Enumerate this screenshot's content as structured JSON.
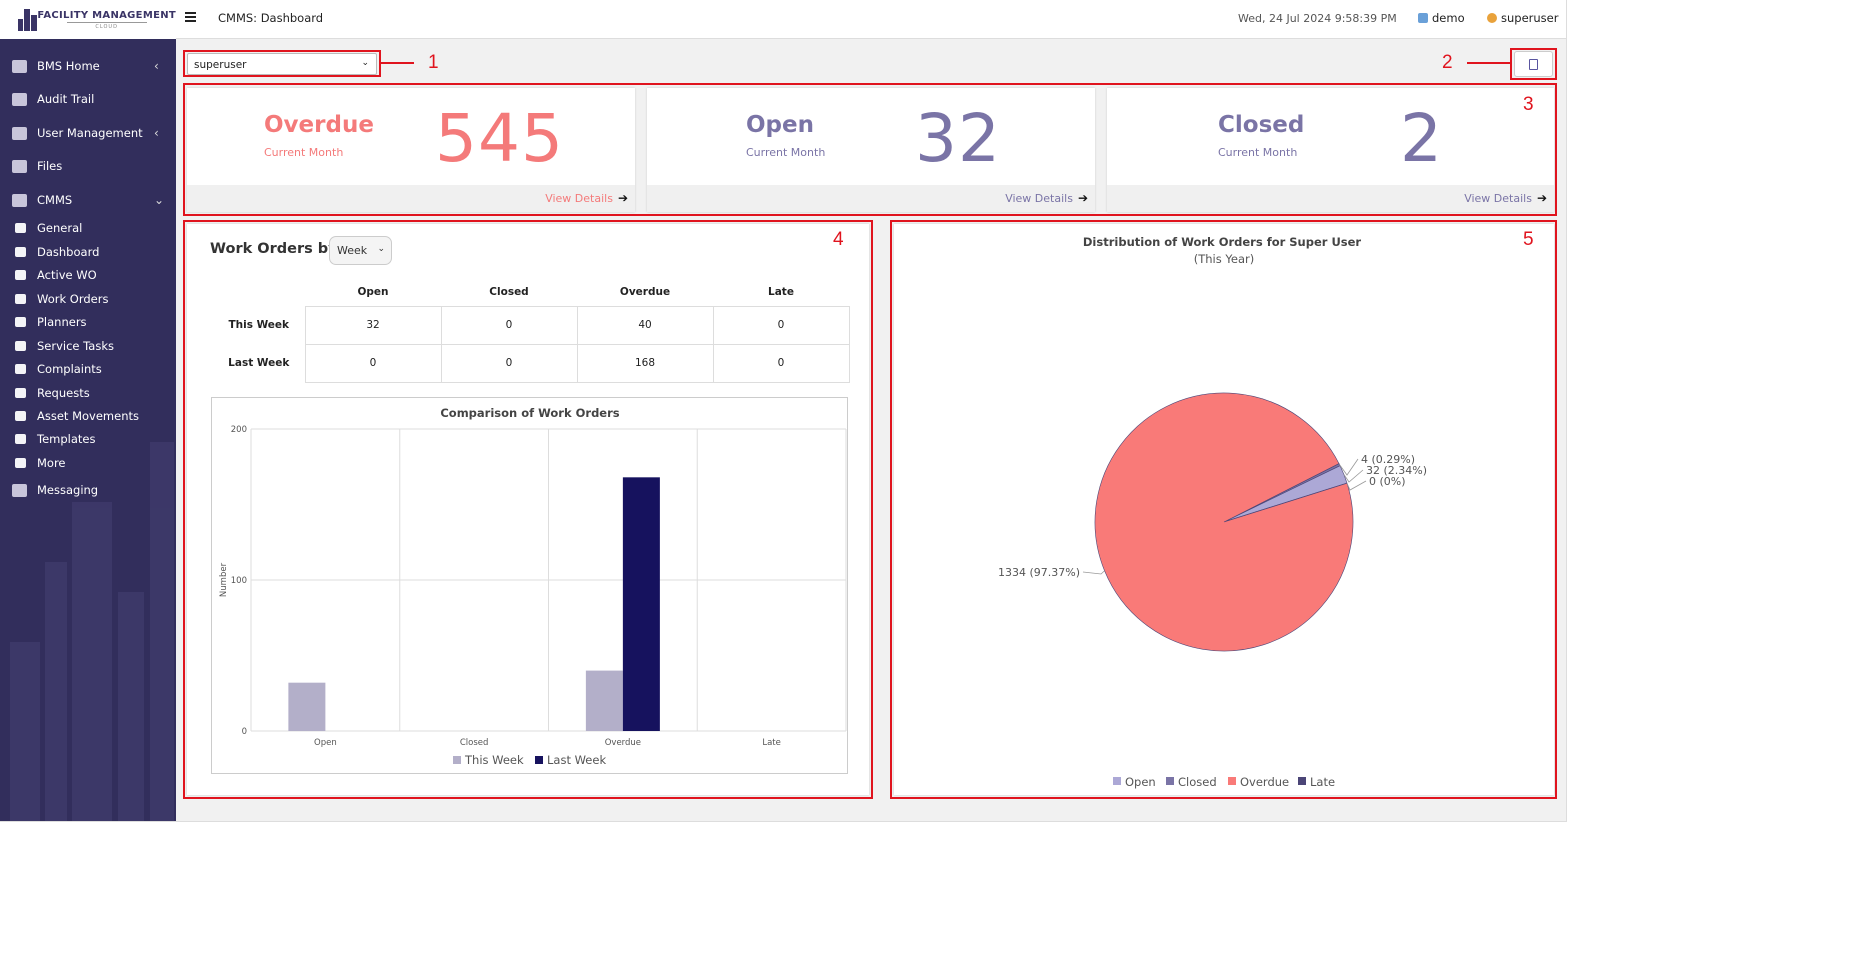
{
  "app": {
    "brand": "FACILITY MANAGEMENT",
    "brand_sub": "CLOUD",
    "page_title": "CMMS: Dashboard",
    "datetime": "Wed, 24 Jul 2024 9:58:39 PM",
    "site": "demo",
    "user": "superuser"
  },
  "sidebar": {
    "items": [
      {
        "label": "BMS Home",
        "icon": "building-icon",
        "chevron": "‹"
      },
      {
        "label": "Audit Trail",
        "icon": "clipboard-icon",
        "chevron": ""
      },
      {
        "label": "User Management",
        "icon": "users-icon",
        "chevron": "‹"
      },
      {
        "label": "Files",
        "icon": "files-icon",
        "chevron": ""
      },
      {
        "label": "CMMS",
        "icon": "cmms-icon",
        "chevron": "⌄"
      }
    ],
    "sub_items": [
      {
        "label": "General",
        "icon": "cogs-icon"
      },
      {
        "label": "Dashboard",
        "icon": "dashboard-icon"
      },
      {
        "label": "Active WO",
        "icon": "wrench-icon"
      },
      {
        "label": "Work Orders",
        "icon": "list-icon"
      },
      {
        "label": "Planners",
        "icon": "copy-icon"
      },
      {
        "label": "Service Tasks",
        "icon": "check-square-icon"
      },
      {
        "label": "Complaints",
        "icon": "table-icon"
      },
      {
        "label": "Requests",
        "icon": "columns-icon"
      },
      {
        "label": "Asset Movements",
        "icon": "exchange-icon"
      },
      {
        "label": "Templates",
        "icon": "file-pdf-icon"
      },
      {
        "label": "More",
        "icon": "ellipsis-icon"
      }
    ],
    "messaging": {
      "label": "Messaging",
      "icon": "mail-icon"
    }
  },
  "filter": {
    "user_select": "superuser"
  },
  "annotations": [
    "1",
    "2",
    "3",
    "4",
    "5"
  ],
  "stats": [
    {
      "name": "Overdue",
      "period": "Current Month",
      "value": "545",
      "link": "View Details",
      "color": "#f47a7a"
    },
    {
      "name": "Open",
      "period": "Current Month",
      "value": "32",
      "link": "View Details",
      "color": "#7a74a6"
    },
    {
      "name": "Closed",
      "period": "Current Month",
      "value": "2",
      "link": "View Details",
      "color": "#7a74a6"
    }
  ],
  "work_orders": {
    "title": "Work Orders by",
    "period_select": "Week",
    "columns": [
      "Open",
      "Closed",
      "Overdue",
      "Late"
    ],
    "rows": [
      {
        "label": "This Week",
        "values": [
          "32",
          "0",
          "40",
          "0"
        ]
      },
      {
        "label": "Last Week",
        "values": [
          "0",
          "0",
          "168",
          "0"
        ]
      }
    ]
  },
  "chart_data": [
    {
      "type": "bar",
      "title": "Comparison of Work Orders",
      "xlabel": "",
      "ylabel": "Number",
      "ylim": [
        0,
        200
      ],
      "yticks": [
        "0",
        "100",
        "200"
      ],
      "categories": [
        "Open",
        "Closed",
        "Overdue",
        "Late"
      ],
      "series": [
        {
          "name": "This Week",
          "values": [
            32,
            0,
            40,
            0
          ],
          "color": "#b3afc9"
        },
        {
          "name": "Last Week",
          "values": [
            0,
            0,
            168,
            0
          ],
          "color": "#16125e"
        }
      ],
      "legend": "bottom"
    },
    {
      "type": "pie",
      "title": "Distribution of Work Orders for Super User",
      "subtitle": "(This Year)",
      "slices": [
        {
          "name": "Open",
          "value": 32,
          "label": "32 (2.34%)",
          "color": "#aca8d6"
        },
        {
          "name": "Closed",
          "value": 4,
          "label": "4 (0.29%)",
          "color": "#7a74a6"
        },
        {
          "name": "Overdue",
          "value": 1334,
          "label": "1334 (97.37%)",
          "color": "#f97a78"
        },
        {
          "name": "Late",
          "value": 0,
          "label": "0 (0%)",
          "color": "#4b4577"
        }
      ],
      "legend": "bottom"
    }
  ]
}
